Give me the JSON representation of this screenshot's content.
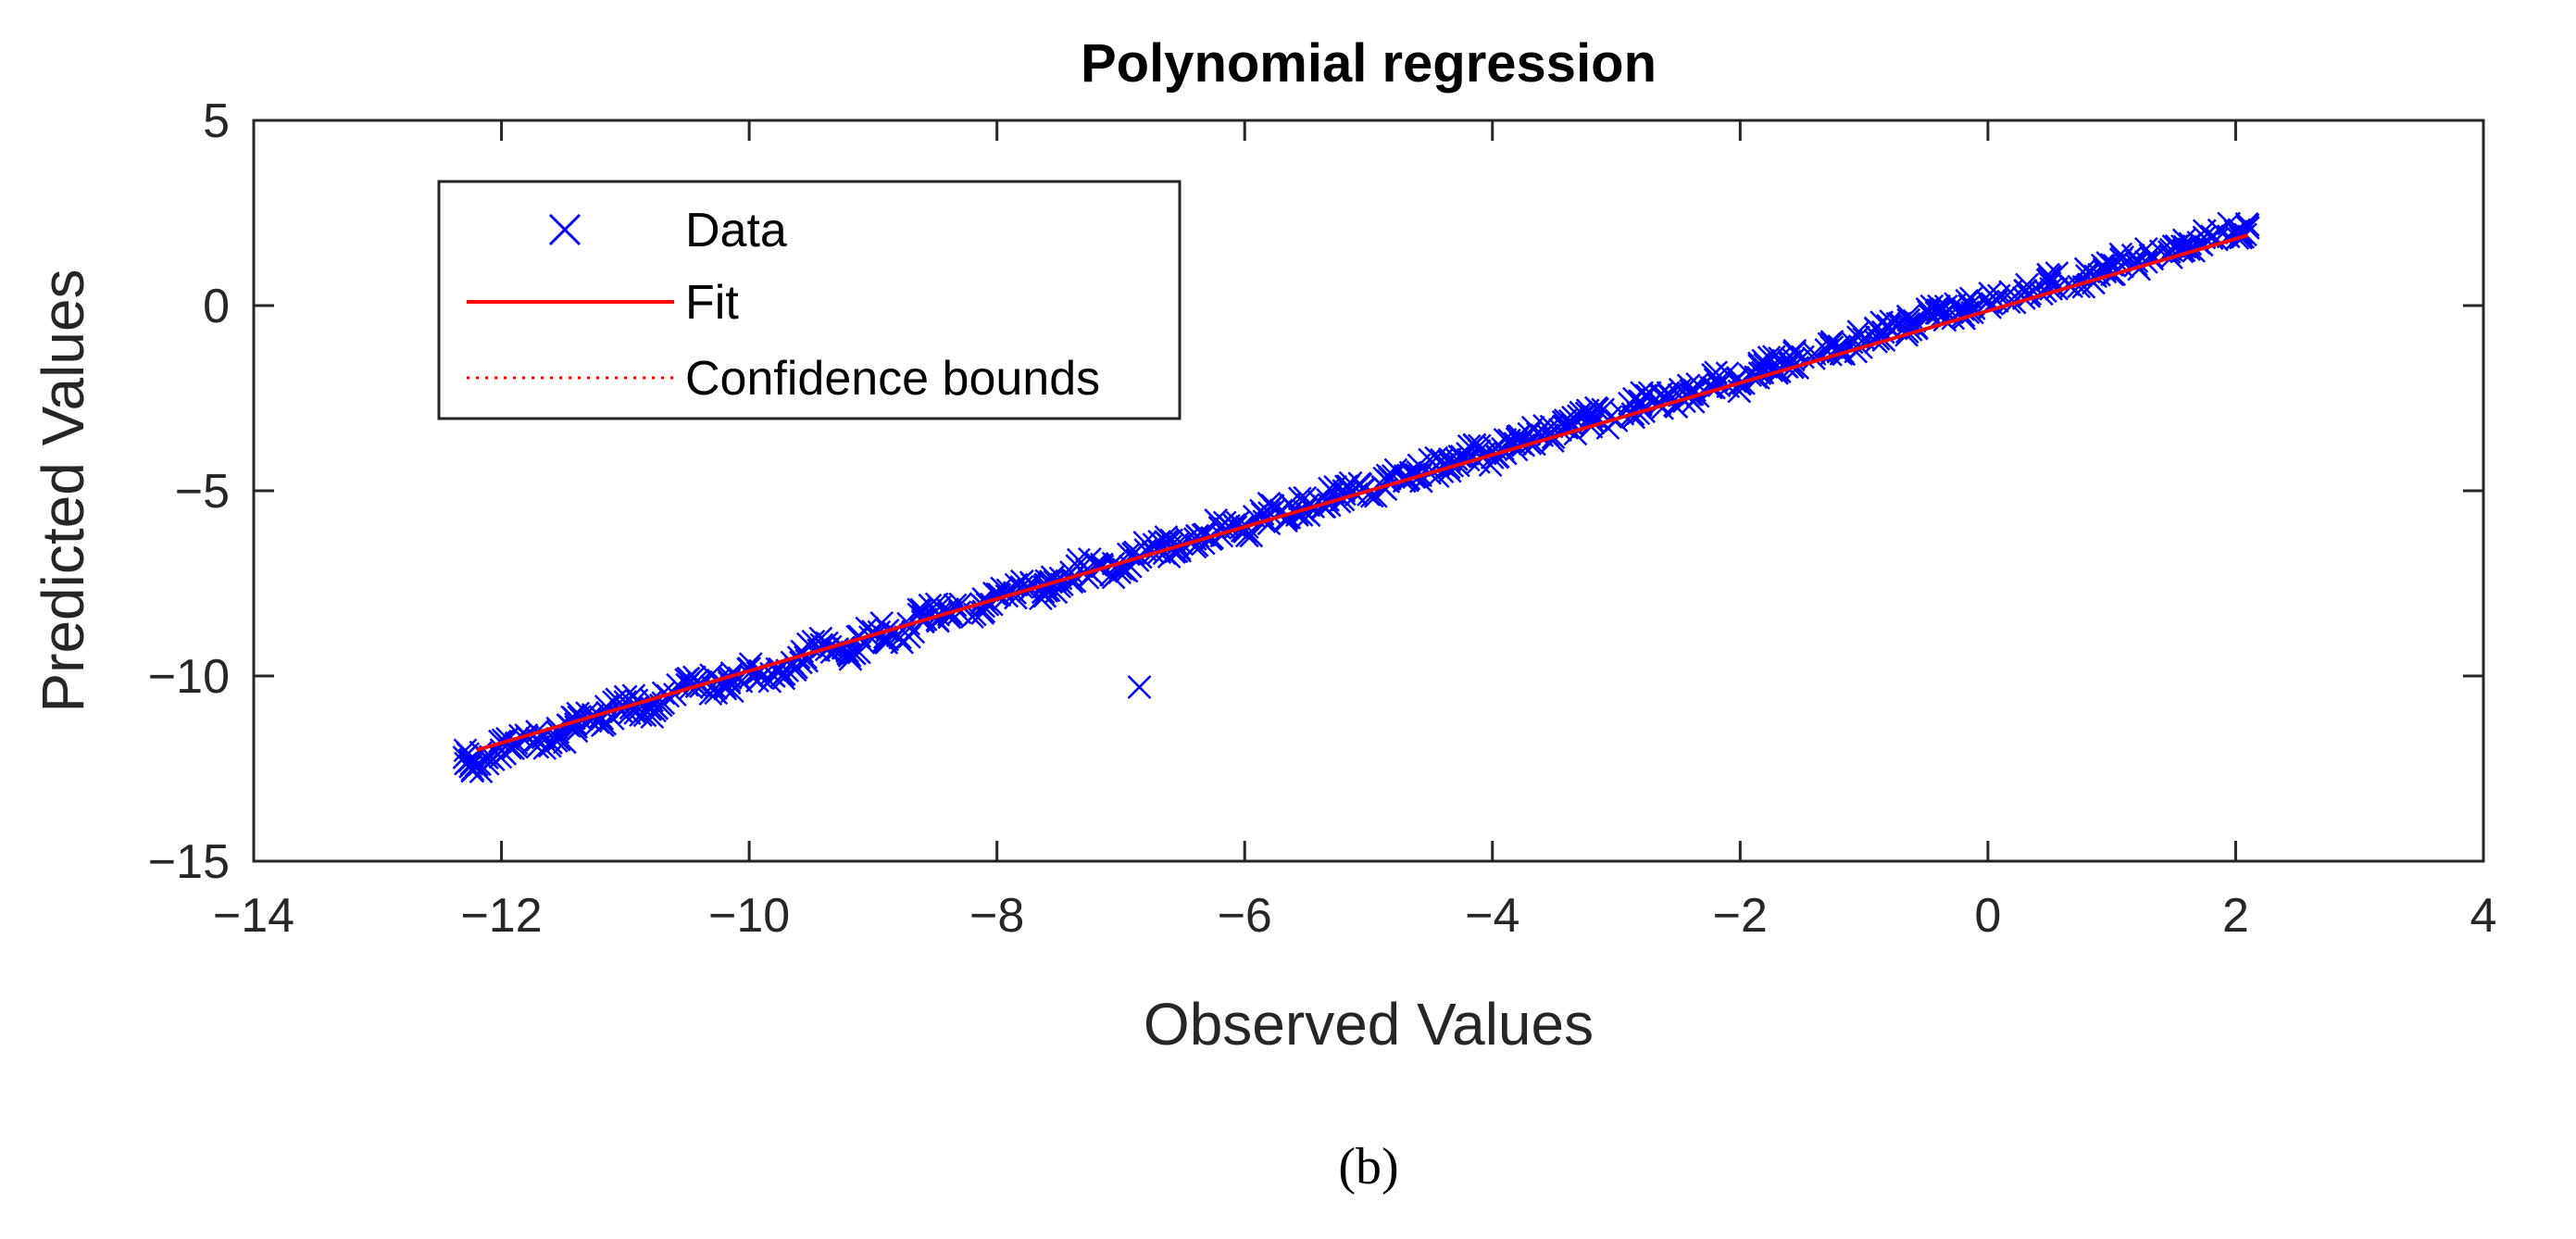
{
  "chart_data": {
    "type": "scatter",
    "title": "Polynomial regression",
    "xlabel": "Observed Values",
    "ylabel": "Predicted Values",
    "xlim": [
      -14,
      4
    ],
    "ylim": [
      -15,
      5
    ],
    "xticks": [
      -14,
      -12,
      -10,
      -8,
      -6,
      -4,
      -2,
      0,
      2,
      4
    ],
    "yticks": [
      -15,
      -10,
      -5,
      0,
      5
    ],
    "xtick_labels": [
      "−14",
      "−12",
      "−10",
      "−8",
      "−6",
      "−4",
      "−2",
      "0",
      "2",
      "4"
    ],
    "ytick_labels": [
      "−15",
      "−10",
      "−5",
      "0",
      "5"
    ],
    "grid": false,
    "legend_position": "top-left",
    "legend": [
      {
        "label": "Data",
        "style": "marker-x",
        "color": "#0000ff"
      },
      {
        "label": "Fit",
        "style": "solid-line",
        "color": "#ff0000"
      },
      {
        "label": "Confidence bounds",
        "style": "dotted-line",
        "color": "#ff0000"
      }
    ],
    "series": [
      {
        "name": "Data",
        "kind": "scatter",
        "marker": "x",
        "color": "#0000ff",
        "approx_range_x": [
          -12.3,
          2.1
        ],
        "approx_relation": "y ≈ x",
        "sample_points": [
          [
            -12.3,
            -12.2
          ],
          [
            -12.2,
            -12.4
          ],
          [
            -12.0,
            -12.0
          ],
          [
            -11.8,
            -11.6
          ],
          [
            -11.6,
            -11.8
          ],
          [
            -11.4,
            -11.3
          ],
          [
            -11.2,
            -11.1
          ],
          [
            -11.0,
            -10.7
          ],
          [
            -10.8,
            -10.9
          ],
          [
            -10.6,
            -10.5
          ],
          [
            -10.4,
            -10.2
          ],
          [
            -10.2,
            -10.3
          ],
          [
            -10.0,
            -9.8
          ],
          [
            -9.8,
            -10.0
          ],
          [
            -9.6,
            -9.5
          ],
          [
            -9.4,
            -9.2
          ],
          [
            -9.2,
            -9.4
          ],
          [
            -9.0,
            -8.8
          ],
          [
            -8.8,
            -8.9
          ],
          [
            -8.6,
            -8.4
          ],
          [
            -8.4,
            -8.2
          ],
          [
            -8.2,
            -8.4
          ],
          [
            -8.0,
            -7.8
          ],
          [
            -7.8,
            -7.6
          ],
          [
            -7.6,
            -7.7
          ],
          [
            -7.4,
            -7.2
          ],
          [
            -7.2,
            -7.0
          ],
          [
            -7.0,
            -7.1
          ],
          [
            -6.8,
            -6.6
          ],
          [
            -6.6,
            -6.5
          ],
          [
            -6.4,
            -6.3
          ],
          [
            -6.2,
            -6.0
          ],
          [
            -6.0,
            -6.1
          ],
          [
            -5.8,
            -5.6
          ],
          [
            -5.6,
            -5.5
          ],
          [
            -5.4,
            -5.3
          ],
          [
            -5.2,
            -5.0
          ],
          [
            -5.0,
            -5.1
          ],
          [
            -4.8,
            -4.6
          ],
          [
            -4.6,
            -4.5
          ],
          [
            -4.4,
            -4.3
          ],
          [
            -4.2,
            -4.0
          ],
          [
            -4.0,
            -4.1
          ],
          [
            -3.8,
            -3.6
          ],
          [
            -3.6,
            -3.5
          ],
          [
            -3.4,
            -3.3
          ],
          [
            -3.2,
            -3.0
          ],
          [
            -3.0,
            -3.1
          ],
          [
            -2.8,
            -2.6
          ],
          [
            -2.6,
            -2.5
          ],
          [
            -2.4,
            -2.4
          ],
          [
            -2.2,
            -2.0
          ],
          [
            -2.0,
            -2.1
          ],
          [
            -1.8,
            -1.6
          ],
          [
            -1.6,
            -1.5
          ],
          [
            -1.4,
            -1.3
          ],
          [
            -1.2,
            -1.1
          ],
          [
            -1.0,
            -0.9
          ],
          [
            -0.8,
            -0.6
          ],
          [
            -0.6,
            -0.5
          ],
          [
            -0.4,
            -0.2
          ],
          [
            -0.2,
            -0.1
          ],
          [
            0.0,
            0.1
          ],
          [
            0.3,
            0.4
          ],
          [
            0.5,
            0.6
          ],
          [
            0.8,
            0.8
          ],
          [
            1.0,
            1.1
          ],
          [
            1.2,
            1.2
          ],
          [
            1.5,
            1.6
          ],
          [
            1.7,
            1.7
          ],
          [
            2.0,
            2.0
          ],
          [
            2.1,
            2.1
          ],
          [
            -6.85,
            -10.3
          ]
        ]
      },
      {
        "name": "Fit",
        "kind": "line",
        "color": "#ff0000",
        "x": [
          -12.2,
          2.1
        ],
        "y": [
          -12.0,
          1.9
        ]
      },
      {
        "name": "Confidence bounds",
        "kind": "line",
        "style": "dotted",
        "color": "#ff0000",
        "x": [
          -12.2,
          2.1
        ],
        "y": [
          -12.0,
          1.9
        ]
      }
    ]
  },
  "caption": "(b)"
}
